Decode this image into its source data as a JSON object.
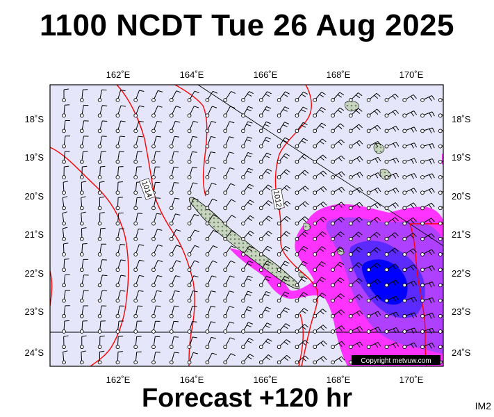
{
  "header": {
    "title": "1100 NCDT Tue 26 Aug 2025"
  },
  "footer": {
    "forecast": "Forecast +120 hr",
    "code": "IM2"
  },
  "map": {
    "lon_ticks": [
      "162˚E",
      "164˚E",
      "166˚E",
      "168˚E",
      "170˚E"
    ],
    "lat_ticks": [
      "18˚S",
      "19˚S",
      "20˚S",
      "21˚S",
      "22˚S",
      "23˚S",
      "24˚S"
    ],
    "isobars": [
      "1014",
      "1012"
    ],
    "copyright": "Copyright metvuw.com",
    "colors": {
      "background": "#e6e6fa",
      "isobar": "#ff0000",
      "rain_light": "#ff33ff",
      "rain_moderate": "#aa33ff",
      "rain_heavy": "#0000ff",
      "land": "#a9b8a0"
    }
  }
}
